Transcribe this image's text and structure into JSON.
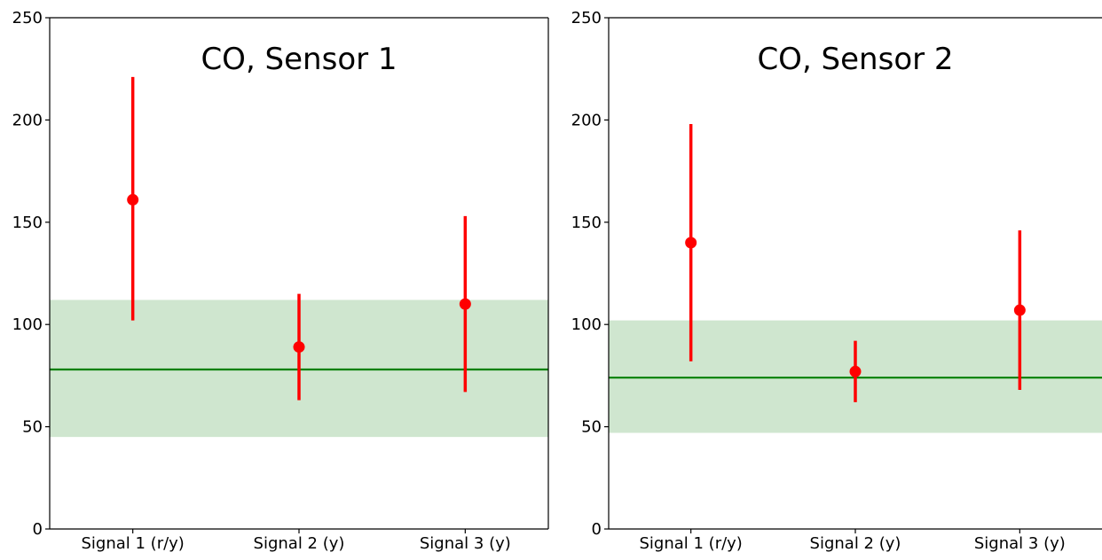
{
  "colors": {
    "point": "#ff0000",
    "errorbar": "#ff0000",
    "reference_line": "#008000",
    "band": "#cfe6cf",
    "axis": "#000000"
  },
  "chart_data": [
    {
      "type": "scatter",
      "title": "CO, Sensor 1",
      "xlabel": "",
      "ylabel": "",
      "categories": [
        "Signal 1 (r/y)",
        "Signal 2 (y)",
        "Signal 3 (y)"
      ],
      "values": [
        161,
        89,
        110
      ],
      "error_low": [
        102,
        63,
        67
      ],
      "error_high": [
        221,
        115,
        153
      ],
      "reference_line": 78,
      "reference_band": [
        45,
        112
      ],
      "ylim": [
        0,
        250
      ],
      "yticks": [
        "0",
        "50",
        "100",
        "150",
        "200",
        "250"
      ],
      "grid": false,
      "legend": "none"
    },
    {
      "type": "scatter",
      "title": "CO, Sensor 2",
      "xlabel": "",
      "ylabel": "",
      "categories": [
        "Signal 1 (r/y)",
        "Signal 2 (y)",
        "Signal 3 (y)"
      ],
      "values": [
        140,
        77,
        107
      ],
      "error_low": [
        82,
        62,
        68
      ],
      "error_high": [
        198,
        92,
        146
      ],
      "reference_line": 74,
      "reference_band": [
        47,
        102
      ],
      "ylim": [
        0,
        250
      ],
      "yticks": [
        "0",
        "50",
        "100",
        "150",
        "200",
        "250"
      ],
      "grid": false,
      "legend": "none"
    }
  ]
}
